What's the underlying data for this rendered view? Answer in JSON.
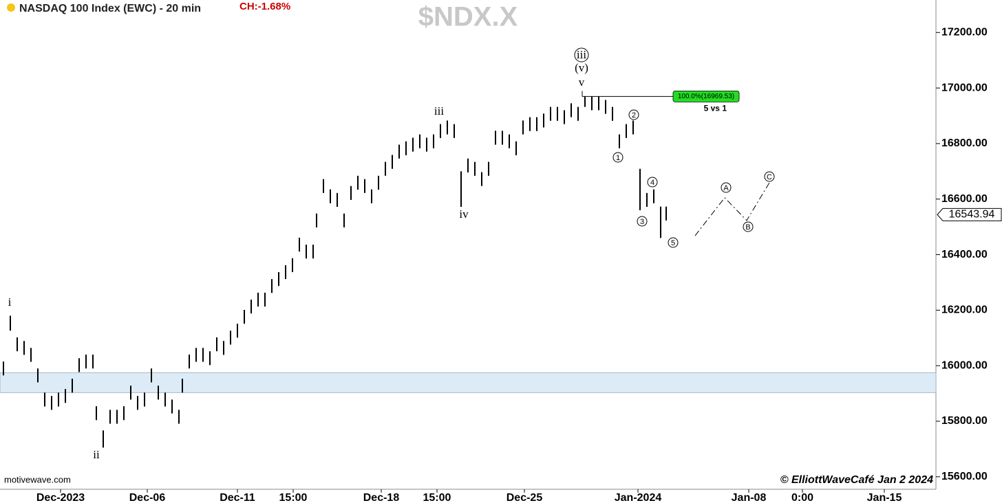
{
  "chart_data": {
    "type": "ohlc",
    "title": "$NDX.X",
    "subtitle": "NASDAQ 100 Index (EWC) - 20 min",
    "change": "CH:-1.68%",
    "source": "motivewave.com",
    "credit": "© ElliottWaveCafé Jan 2 2024",
    "color": "#000000",
    "xlim": [
      0,
      680
    ],
    "ylim": [
      15555,
      17317
    ],
    "xticks": [
      {
        "value": 44,
        "label": "Dec-2023"
      },
      {
        "value": 107,
        "label": "Dec-06"
      },
      {
        "value": 172.5,
        "label": "Dec-11"
      },
      {
        "value": 213,
        "label": "15:00"
      },
      {
        "value": 277,
        "label": "Dec-18"
      },
      {
        "value": 317.5,
        "label": "15:00"
      },
      {
        "value": 381,
        "label": "Dec-25"
      },
      {
        "value": 463.5,
        "label": "Jan-2024"
      },
      {
        "value": 544,
        "label": "Jan-08"
      },
      {
        "value": 583,
        "label": "0:00"
      },
      {
        "value": 642.5,
        "label": "Jan-15"
      }
    ],
    "yticks": [
      {
        "value": 15600,
        "label": "15600.00"
      },
      {
        "value": 15800,
        "label": "15800.00"
      },
      {
        "value": 16000,
        "label": "16000.00"
      },
      {
        "value": 16200,
        "label": "16200.00"
      },
      {
        "value": 16400,
        "label": "16400.00"
      },
      {
        "value": 16600,
        "label": "16600.00"
      },
      {
        "value": 16800,
        "label": "16800.00"
      },
      {
        "value": 17000,
        "label": "17000.00"
      },
      {
        "value": 17200,
        "label": "17200.00"
      }
    ],
    "last_price": 16543.94,
    "x": [
      2.5,
      7.5,
      12.5,
      17.5,
      22.5,
      27.5,
      32.5,
      37.5,
      42.5,
      47.5,
      52.5,
      57.5,
      62.5,
      67.5,
      70,
      75,
      80,
      85,
      90,
      95,
      100,
      105,
      110,
      115,
      120,
      125,
      130,
      132.5,
      137.5,
      142.5,
      147.5,
      152.5,
      157.5,
      162.5,
      167.5,
      172.5,
      177.5,
      182.5,
      187.5,
      192.5,
      197.5,
      202.5,
      207.5,
      212.5,
      217.5,
      222.5,
      227.5,
      230,
      235,
      240,
      245,
      250,
      255,
      260,
      265,
      270,
      275,
      280,
      285,
      290,
      295,
      300,
      305,
      310,
      315,
      320,
      325,
      330,
      335,
      340,
      345,
      350,
      355,
      360,
      365,
      370,
      375,
      380,
      385,
      390,
      395,
      400,
      405,
      410,
      415,
      420,
      425,
      430,
      435,
      440,
      445,
      450,
      455,
      460,
      465,
      470,
      475,
      480,
      484
    ],
    "high": [
      16015,
      16180,
      16102,
      16089,
      16064,
      15990,
      15903,
      15891,
      15903,
      15916,
      15953,
      16027,
      16040,
      16040,
      15854,
      15767,
      15841,
      15841,
      15854,
      15928,
      15891,
      15903,
      15990,
      15928,
      15903,
      15878,
      15841,
      15953,
      16040,
      16064,
      16064,
      16052,
      16102,
      16089,
      16126,
      16151,
      16201,
      16238,
      16263,
      16263,
      16312,
      16337,
      16362,
      16387,
      16461,
      16436,
      16436,
      16548,
      16672,
      16635,
      16622,
      16548,
      16647,
      16684,
      16672,
      16635,
      16684,
      16734,
      16759,
      16796,
      16808,
      16821,
      16833,
      16821,
      16833,
      16870,
      16883,
      16870,
      16700,
      16746,
      16734,
      16697,
      16734,
      16846,
      16846,
      16833,
      16808,
      16883,
      16895,
      16895,
      16908,
      16932,
      16932,
      16920,
      16945,
      16932,
      16970,
      16970,
      16970,
      16957,
      16932,
      16833,
      16870,
      16883,
      16709,
      16622,
      16635,
      16573,
      16573
    ],
    "low": [
      15965,
      16126,
      16052,
      16039,
      16014,
      15940,
      15853,
      15841,
      15853,
      15866,
      15903,
      15977,
      15990,
      15990,
      15804,
      15705,
      15791,
      15791,
      15804,
      15878,
      15841,
      15853,
      15940,
      15878,
      15853,
      15828,
      15791,
      15903,
      15990,
      16014,
      16014,
      16002,
      16052,
      16039,
      16076,
      16101,
      16151,
      16188,
      16213,
      16213,
      16262,
      16287,
      16312,
      16337,
      16411,
      16386,
      16386,
      16498,
      16622,
      16585,
      16572,
      16498,
      16597,
      16634,
      16622,
      16585,
      16634,
      16684,
      16709,
      16746,
      16758,
      16771,
      16783,
      16771,
      16783,
      16820,
      16833,
      16820,
      16572,
      16696,
      16684,
      16647,
      16684,
      16796,
      16796,
      16783,
      16758,
      16833,
      16845,
      16845,
      16858,
      16882,
      16882,
      16870,
      16895,
      16882,
      16932,
      16920,
      16920,
      16907,
      16882,
      16783,
      16820,
      16833,
      16560,
      16572,
      16585,
      16460,
      16523
    ],
    "zone": [
      15903,
      15975
    ],
    "target": {
      "value": 16969.53,
      "label": "100.0%(16969.53)",
      "note": "5 vs 1",
      "xlim": [
        423,
        490
      ]
    },
    "projection": {
      "x": [
        505,
        526.5,
        542.5,
        559
      ],
      "values": [
        16468,
        16605,
        16523,
        16659
      ]
    },
    "annotations": [
      {
        "text": "i",
        "style": "wave"
      },
      {
        "text": "ii",
        "style": "wave"
      },
      {
        "text": "iii",
        "style": "wave"
      },
      {
        "text": "iv",
        "style": "wave"
      },
      {
        "text": "v",
        "style": "wave"
      },
      {
        "text": "(v)",
        "style": "wave"
      },
      {
        "text": "iii",
        "style": "circled"
      },
      {
        "text": "1",
        "style": "circled"
      },
      {
        "text": "2",
        "style": "circled"
      },
      {
        "text": "3",
        "style": "circled"
      },
      {
        "text": "4",
        "style": "circled"
      },
      {
        "text": "5",
        "style": "circled"
      },
      {
        "text": "A",
        "style": "circled"
      },
      {
        "text": "B",
        "style": "circled"
      },
      {
        "text": "C",
        "style": "circled"
      }
    ]
  }
}
